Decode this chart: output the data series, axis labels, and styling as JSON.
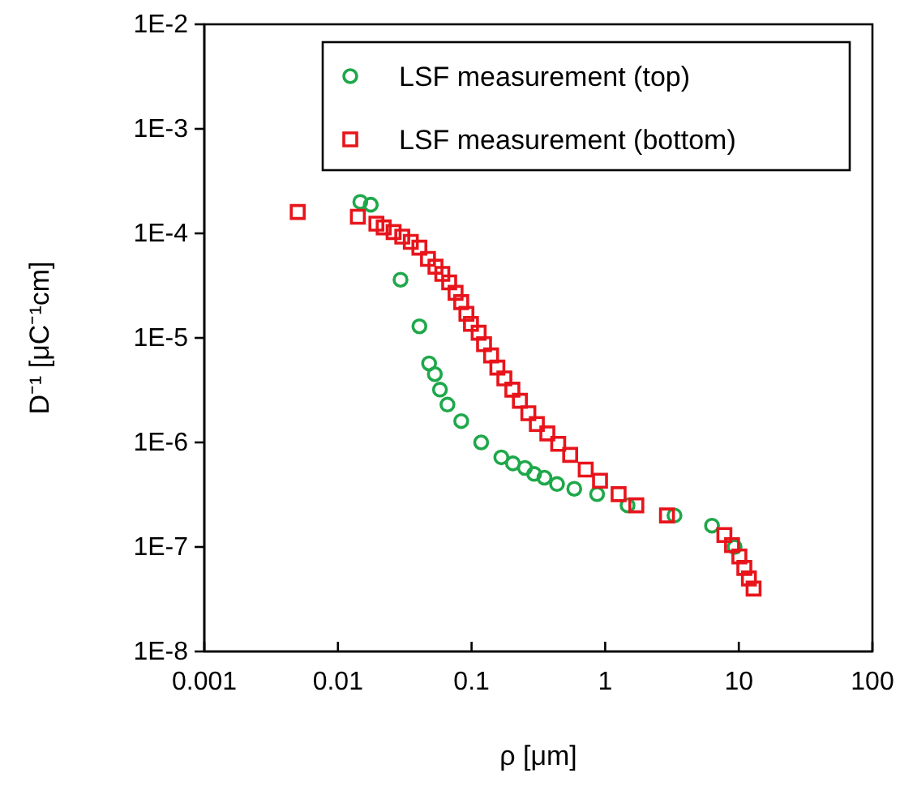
{
  "chart_data": {
    "type": "scatter",
    "xlabel": "ρ [μm]",
    "ylabel": "D⁻¹ [μC⁻¹cm]",
    "log": "xy",
    "grid": false,
    "legend": "top right",
    "xlim": [
      0.001,
      100
    ],
    "xticks": [
      0.001,
      0.01,
      0.1,
      1,
      10,
      100
    ],
    "ylim": [
      1e-08,
      0.01
    ],
    "yticks": [
      {
        "value": 1e-08,
        "label": "1E-8"
      },
      {
        "value": 1e-07,
        "label": "1E-7"
      },
      {
        "value": 1e-06,
        "label": "1E-6"
      },
      {
        "value": 1e-05,
        "label": "1E-5"
      },
      {
        "value": 0.0001,
        "label": "1E-4"
      },
      {
        "value": 0.001,
        "label": "1E-3"
      },
      {
        "value": 0.01,
        "label": "1E-2"
      }
    ],
    "series": [
      {
        "name": "LSF measurement (top)",
        "color": "#1ea84a",
        "marker": "circle",
        "x": [
          0.0147,
          0.0176,
          0.0294,
          0.0407,
          0.0481,
          0.0531,
          0.058,
          0.066,
          0.0837,
          0.118,
          0.167,
          0.204,
          0.251,
          0.294,
          0.351,
          0.436,
          0.587,
          0.87,
          1.47,
          3.3,
          6.3,
          9.3
        ],
        "values": [
          0.0002,
          0.000188,
          3.6e-05,
          1.29e-05,
          5.7e-06,
          4.5e-06,
          3.2e-06,
          2.3e-06,
          1.6e-06,
          1e-06,
          7.2e-07,
          6.3e-07,
          5.7e-07,
          5e-07,
          4.6e-07,
          4e-07,
          3.6e-07,
          3.2e-07,
          2.5e-07,
          2e-07,
          1.6e-07,
          1e-07
        ]
      },
      {
        "name": "LSF measurement (bottom)",
        "color": "#e8141b",
        "marker": "square",
        "x": [
          0.005,
          0.0141,
          0.0194,
          0.022,
          0.0261,
          0.0303,
          0.0351,
          0.0407,
          0.0472,
          0.0537,
          0.0604,
          0.068,
          0.0759,
          0.0837,
          0.0915,
          0.099,
          0.113,
          0.124,
          0.14,
          0.156,
          0.176,
          0.202,
          0.23,
          0.266,
          0.308,
          0.369,
          0.445,
          0.547,
          0.715,
          0.915,
          1.26,
          1.71,
          2.9,
          7.8,
          8.9,
          10.1,
          11.0,
          11.9,
          12.9
        ],
        "values": [
          0.00016,
          0.000144,
          0.000124,
          0.000114,
          0.000103,
          9.3e-05,
          8.3e-05,
          7.3e-05,
          5.7e-05,
          4.8e-05,
          4.1e-05,
          3.4e-05,
          2.7e-05,
          2.2e-05,
          1.7e-05,
          1.36e-05,
          1.12e-05,
          8.7e-06,
          6.8e-06,
          5.2e-06,
          4.1e-06,
          3.2e-06,
          2.5e-06,
          1.9e-06,
          1.5e-06,
          1.22e-06,
          9.7e-07,
          7.6e-07,
          5.5e-07,
          4.3e-07,
          3.2e-07,
          2.5e-07,
          2e-07,
          1.3e-07,
          1.04e-07,
          8.1e-08,
          6.3e-08,
          5e-08,
          4e-08
        ]
      }
    ]
  }
}
